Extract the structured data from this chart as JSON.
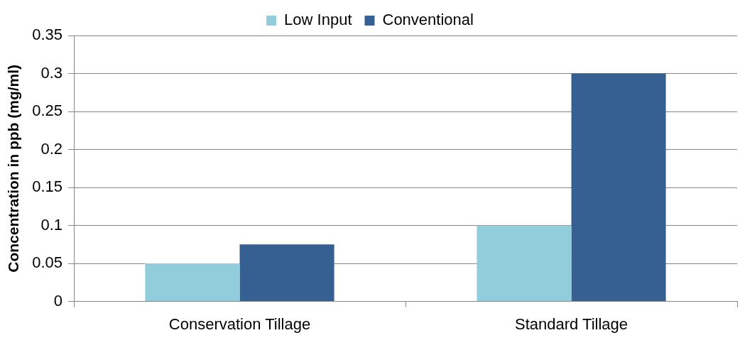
{
  "chart_data": {
    "type": "bar",
    "ylabel": "Concentration in ppb (mg/ml)",
    "categories": [
      "Conservation Tillage",
      "Standard Tillage"
    ],
    "series": [
      {
        "name": "Low Input",
        "color": "#92cddc",
        "values": [
          0.05,
          0.1
        ]
      },
      {
        "name": "Conventional",
        "color": "#366092",
        "values": [
          0.075,
          0.3
        ]
      }
    ],
    "ylim": [
      0,
      0.35
    ],
    "yticks": [
      0,
      0.05,
      0.1,
      0.15,
      0.2,
      0.25,
      0.3,
      0.35
    ],
    "grid": "y",
    "legend": "top"
  }
}
